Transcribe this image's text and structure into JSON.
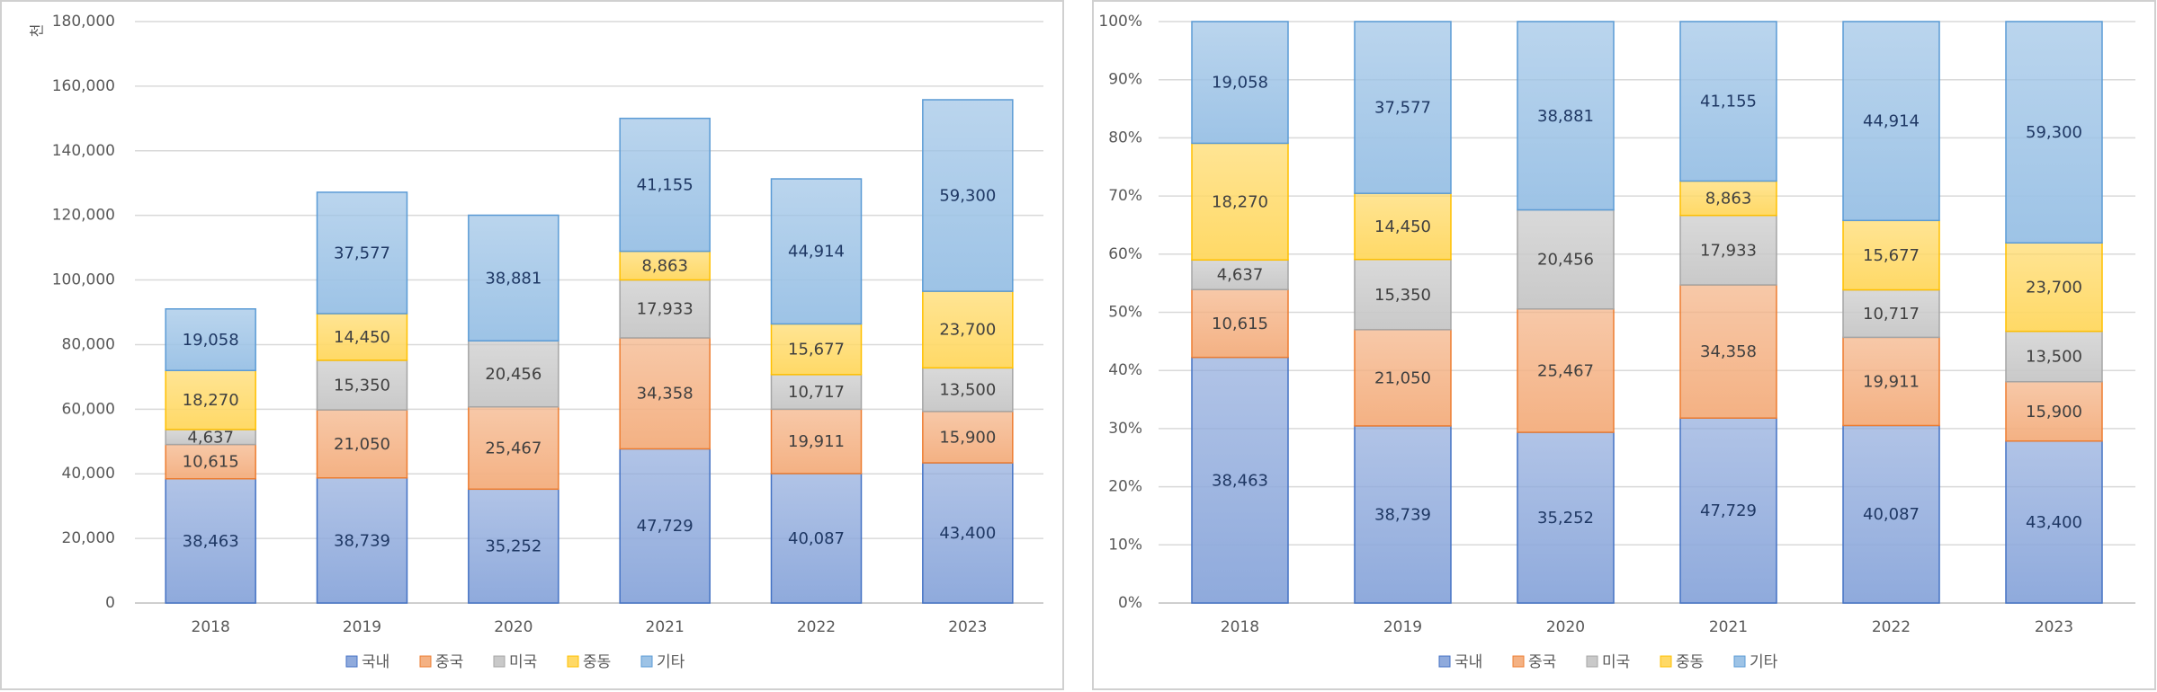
{
  "chart_data": [
    {
      "type": "bar",
      "stacking": "normal",
      "y_label": "천",
      "categories": [
        "2018",
        "2019",
        "2020",
        "2021",
        "2022",
        "2023"
      ],
      "series": [
        {
          "name": "국내",
          "color": "#8faadc",
          "edge": "#4472c4",
          "values": [
            38463,
            38739,
            35252,
            47729,
            40087,
            43400
          ],
          "value_labels": [
            "38,463",
            "38,739",
            "35,252",
            "47,729",
            "40,087",
            "43,400"
          ]
        },
        {
          "name": "중국",
          "color": "#f4b183",
          "edge": "#ed7d31",
          "values": [
            10615,
            21050,
            25467,
            34358,
            19911,
            15900
          ],
          "value_labels": [
            "10,615",
            "21,050",
            "25,467",
            "34,358",
            "19,911",
            "15,900"
          ]
        },
        {
          "name": "미국",
          "color": "#c9c9c9",
          "edge": "#a5a5a5",
          "values": [
            4637,
            15350,
            20456,
            17933,
            10717,
            13500
          ],
          "value_labels": [
            "4,637",
            "15,350",
            "20,456",
            "17,933",
            "10,717",
            "13,500"
          ]
        },
        {
          "name": "중동",
          "color": "#ffd966",
          "edge": "#ffc000",
          "values": [
            18270,
            14450,
            0,
            8863,
            15677,
            23700
          ],
          "value_labels": [
            "18,270",
            "14,450",
            null,
            "8,863",
            "15,677",
            "23,700"
          ]
        },
        {
          "name": "기타",
          "color": "#9dc3e6",
          "edge": "#5b9bd5",
          "values": [
            19058,
            37577,
            38881,
            41155,
            44914,
            59300
          ],
          "value_labels": [
            "19,058",
            "37,577",
            "38,881",
            "41,155",
            "44,914",
            "59,300"
          ]
        }
      ],
      "ylim": [
        0,
        180000
      ],
      "yticks": [
        0,
        {
          "value": 20000,
          "label": "20,000"
        },
        {
          "value": 40000,
          "label": "40,000"
        },
        {
          "value": 60000,
          "label": "60,000"
        },
        {
          "value": 80000,
          "label": "80,000"
        },
        {
          "value": 100000,
          "label": "100,000"
        },
        {
          "value": 120000,
          "label": "120,000"
        },
        {
          "value": 140000,
          "label": "140,000"
        },
        {
          "value": 160000,
          "label": "160,000"
        },
        {
          "value": 180000,
          "label": "180,000"
        }
      ],
      "grid": true,
      "legend": "bottom"
    },
    {
      "type": "bar",
      "stacking": "percent",
      "categories": [
        "2018",
        "2019",
        "2020",
        "2021",
        "2022",
        "2023"
      ],
      "series": [
        {
          "name": "국내",
          "color": "#8faadc",
          "edge": "#4472c4",
          "values": [
            38463,
            38739,
            35252,
            47729,
            40087,
            43400
          ],
          "value_labels": [
            "38,463",
            "38,739",
            "35,252",
            "47,729",
            "40,087",
            "43,400"
          ]
        },
        {
          "name": "중국",
          "color": "#f4b183",
          "edge": "#ed7d31",
          "values": [
            10615,
            21050,
            25467,
            34358,
            19911,
            15900
          ],
          "value_labels": [
            "10,615",
            "21,050",
            "25,467",
            "34,358",
            "19,911",
            "15,900"
          ]
        },
        {
          "name": "미국",
          "color": "#c9c9c9",
          "edge": "#a5a5a5",
          "values": [
            4637,
            15350,
            20456,
            17933,
            10717,
            13500
          ],
          "value_labels": [
            "4,637",
            "15,350",
            "20,456",
            "17,933",
            "10,717",
            "13,500"
          ]
        },
        {
          "name": "중동",
          "color": "#ffd966",
          "edge": "#ffc000",
          "values": [
            18270,
            14450,
            0,
            8863,
            15677,
            23700
          ],
          "value_labels": [
            "18,270",
            "14,450",
            null,
            "8,863",
            "15,677",
            "23,700"
          ]
        },
        {
          "name": "기타",
          "color": "#9dc3e6",
          "edge": "#5b9bd5",
          "values": [
            19058,
            37577,
            38881,
            41155,
            44914,
            59300
          ],
          "value_labels": [
            "19,058",
            "37,577",
            "38,881",
            "41,155",
            "44,914",
            "59,300"
          ]
        }
      ],
      "ylim": [
        0,
        100
      ],
      "yticks": [
        {
          "value": 0,
          "label": "0%"
        },
        {
          "value": 10,
          "label": "10%"
        },
        {
          "value": 20,
          "label": "20%"
        },
        {
          "value": 30,
          "label": "30%"
        },
        {
          "value": 40,
          "label": "40%"
        },
        {
          "value": 50,
          "label": "50%"
        },
        {
          "value": 60,
          "label": "60%"
        },
        {
          "value": 70,
          "label": "70%"
        },
        {
          "value": 80,
          "label": "80%"
        },
        {
          "value": 90,
          "label": "90%"
        },
        {
          "value": 100,
          "label": "100%"
        }
      ],
      "grid": true,
      "legend": "bottom"
    }
  ]
}
